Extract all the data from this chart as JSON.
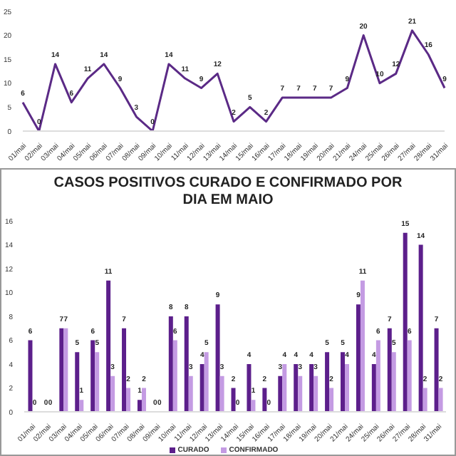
{
  "chart_data": [
    {
      "type": "line",
      "categories": [
        "01/mai",
        "02/mai",
        "03/mai",
        "04/mai",
        "05/mai",
        "06/mai",
        "07/mai",
        "08/mai",
        "09/mai",
        "10/mai",
        "11/mai",
        "12/mai",
        "13/mai",
        "14/mai",
        "15/mai",
        "16/mai",
        "17/mai",
        "18/mai",
        "19/mai",
        "20/mai",
        "21/mai",
        "24/mai",
        "25/mai",
        "26/mai",
        "27/mai",
        "28/mai",
        "31/mai"
      ],
      "series": [
        {
          "color": "#5b2a86",
          "values": [
            6,
            0,
            14,
            6,
            11,
            14,
            9,
            3,
            0,
            14,
            11,
            9,
            12,
            2,
            5,
            2,
            7,
            7,
            7,
            7,
            9,
            20,
            10,
            12,
            21,
            16,
            9
          ]
        }
      ],
      "ylim": [
        0,
        25
      ],
      "yticks": [
        0,
        5,
        10,
        15,
        20,
        25
      ],
      "data_labels": true,
      "marker": "none",
      "grid": false,
      "legend": false
    },
    {
      "type": "bar",
      "title": "CASOS POSITIVOS CURADO E CONFIRMADO POR DIA EM MAIO",
      "categories": [
        "01/mai",
        "02/mai",
        "03/mai",
        "04/mai",
        "05/mai",
        "06/mai",
        "07/mai",
        "08/mai",
        "09/mai",
        "10/mai",
        "11/mai",
        "12/mai",
        "13/mai",
        "14/mai",
        "15/mai",
        "16/mai",
        "17/mai",
        "18/mai",
        "19/mai",
        "20/mai",
        "21/mai",
        "24/mai",
        "25/mai",
        "26/mai",
        "27/mai",
        "28/mai",
        "31/mai"
      ],
      "series": [
        {
          "name": "CURADO",
          "color": "#5c1f8b",
          "values": [
            6,
            0,
            7,
            5,
            6,
            11,
            7,
            1,
            0,
            8,
            8,
            4,
            9,
            2,
            4,
            2,
            3,
            4,
            4,
            5,
            5,
            9,
            4,
            7,
            15,
            14,
            7
          ]
        },
        {
          "name": "CONFIRMADO",
          "color": "#c49be3",
          "values": [
            0,
            0,
            7,
            1,
            5,
            3,
            2,
            2,
            0,
            6,
            3,
            5,
            3,
            0,
            1,
            0,
            4,
            3,
            3,
            2,
            4,
            11,
            6,
            5,
            6,
            2,
            2
          ]
        }
      ],
      "ylim": [
        0,
        16
      ],
      "yticks": [
        0,
        2,
        4,
        6,
        8,
        10,
        12,
        14,
        16
      ],
      "data_labels": true,
      "grid": false,
      "legend": "bottom"
    }
  ]
}
